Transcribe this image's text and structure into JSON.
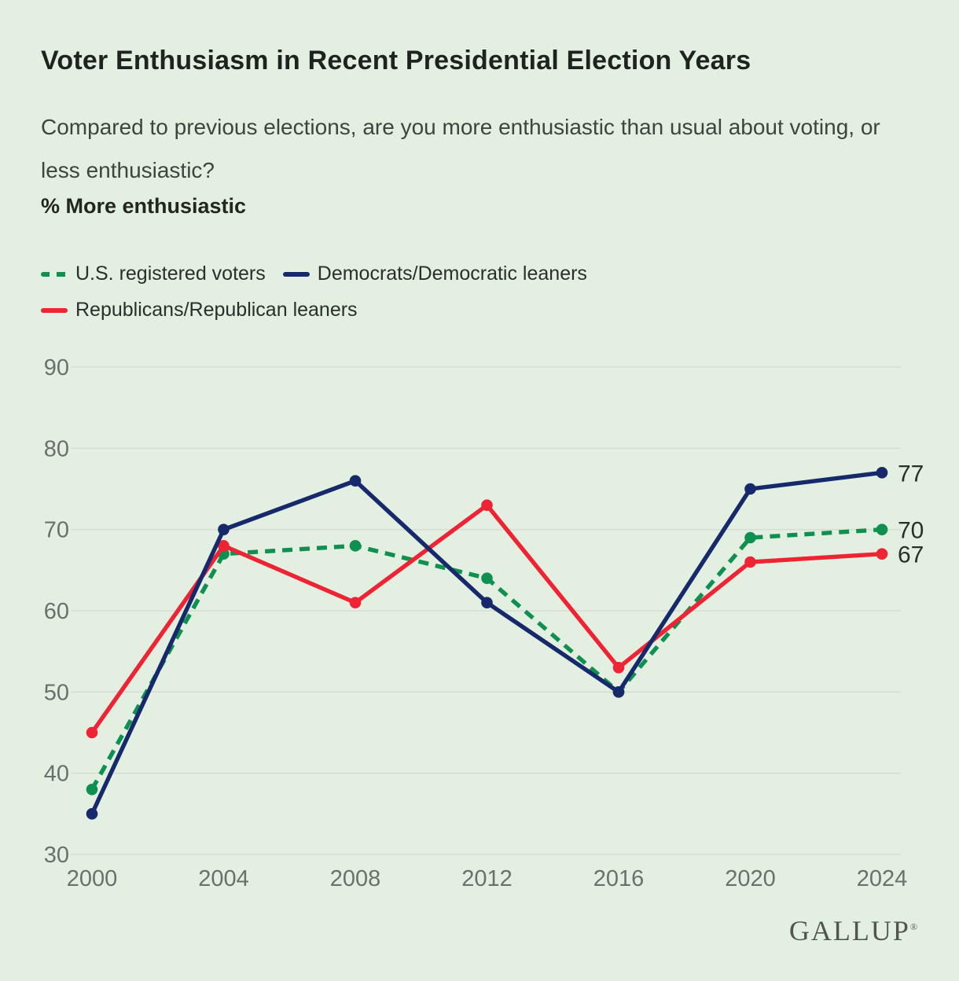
{
  "page": {
    "title": "Voter Enthusiasm in Recent Presidential Election Years",
    "subtitle": "Compared to previous elections, are you more enthusiastic than usual about voting, or less enthusiastic?",
    "metric_label": "% More enthusiastic",
    "brand": "GALLUP",
    "brand_mark": "®"
  },
  "colors": {
    "background": "#e3efe0",
    "gridline": "#d5ded2",
    "axis_text": "#6b706c",
    "end_label": "#2b2e2b",
    "registered_voters": "#0e9150",
    "democrats": "#16296b",
    "republicans": "#ee2435"
  },
  "chart_data": {
    "type": "line",
    "title": "Voter Enthusiasm in Recent Presidential Election Years",
    "subtitle": "Compared to previous elections, are you more enthusiastic than usual about voting, or less enthusiastic?",
    "ylabel": "% More enthusiastic",
    "categories": [
      "2000",
      "2004",
      "2008",
      "2012",
      "2016",
      "2020",
      "2024"
    ],
    "series": [
      {
        "name": "U.S. registered voters",
        "color": "#0e9150",
        "dash": true,
        "values": [
          38,
          67,
          68,
          64,
          50,
          69,
          70
        ]
      },
      {
        "name": "Democrats/Democratic leaners",
        "color": "#16296b",
        "dash": false,
        "values": [
          35,
          70,
          76,
          61,
          50,
          75,
          77
        ]
      },
      {
        "name": "Republicans/Republican leaners",
        "color": "#ee2435",
        "dash": false,
        "values": [
          45,
          68,
          61,
          73,
          53,
          66,
          67
        ]
      }
    ],
    "end_labels": [
      "70",
      "77",
      "67"
    ],
    "ylim": [
      30,
      90
    ],
    "ytick_step": 10,
    "grid": true,
    "legend_position": "top-left"
  }
}
